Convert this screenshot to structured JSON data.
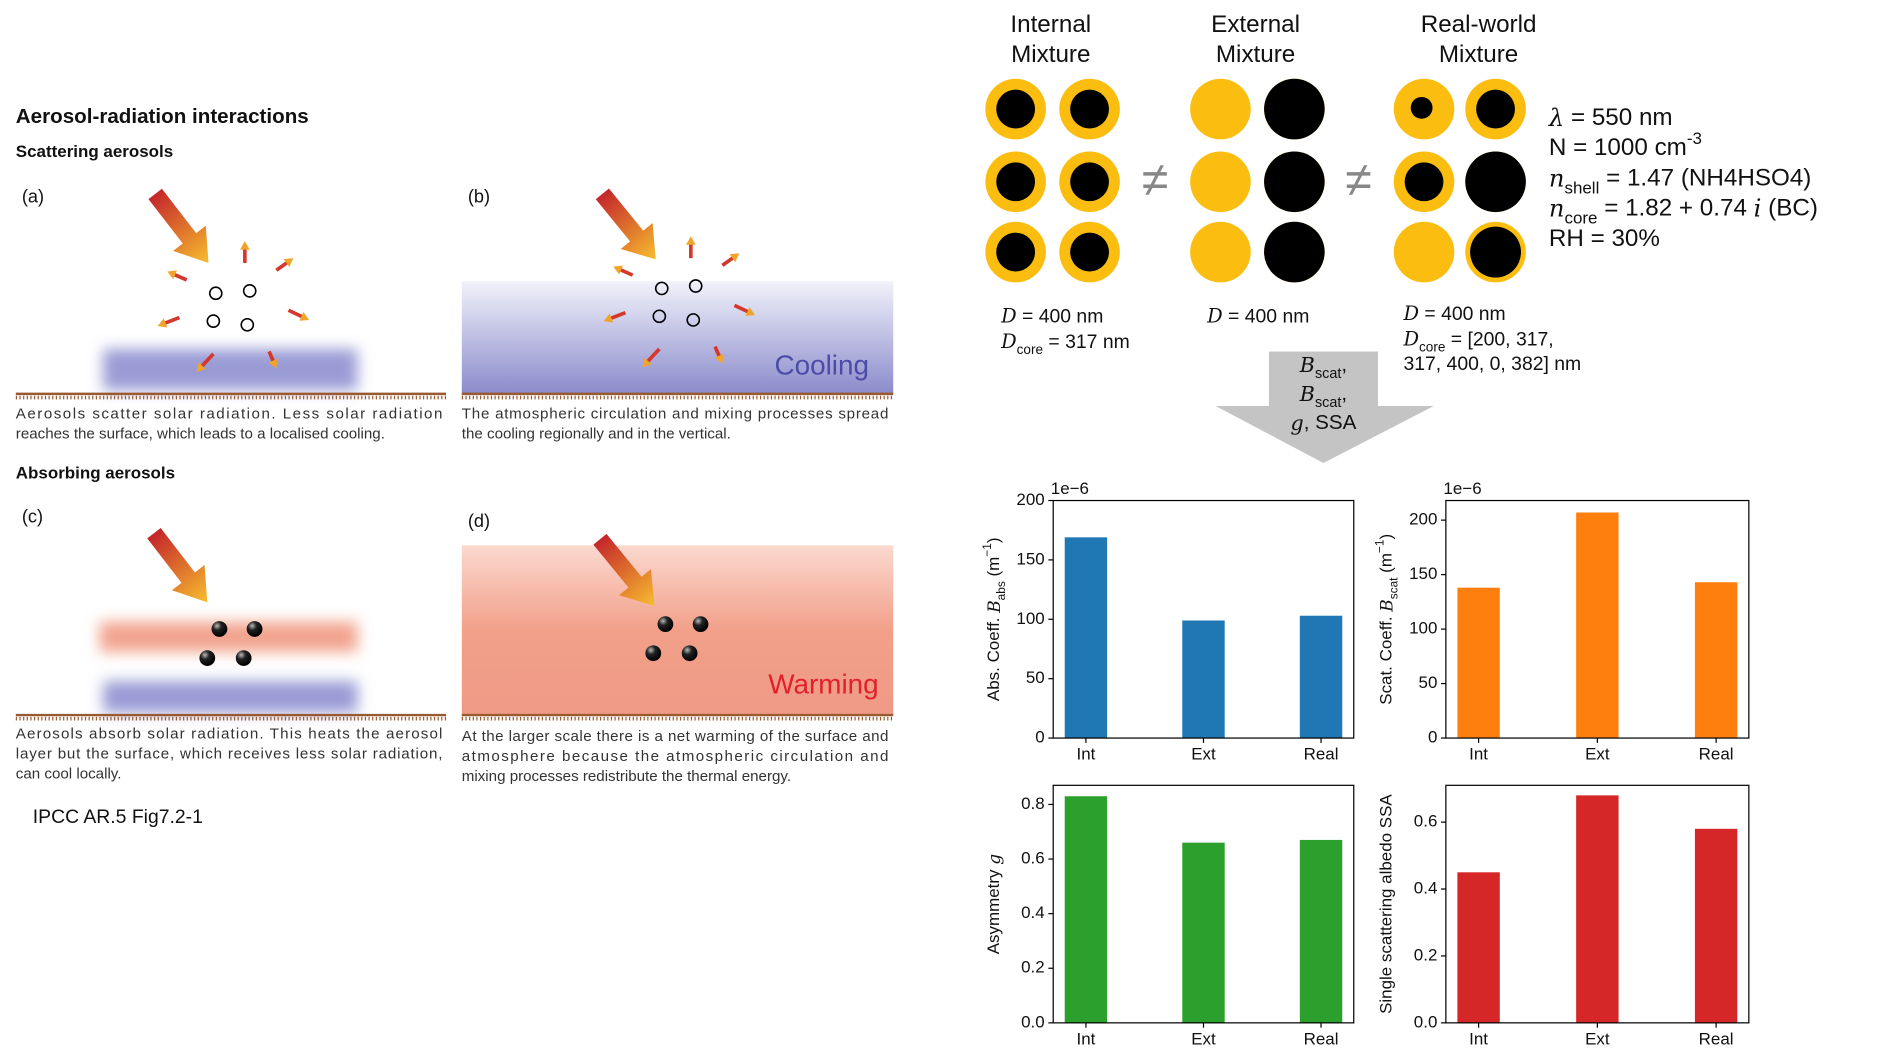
{
  "left_panel": {
    "title": "Aerosol-radiation interactions",
    "scattering_heading": "Scattering aerosols",
    "absorbing_heading": "Absorbing aerosols",
    "panels": [
      {
        "label": "(a)",
        "caption": [
          "Aerosols scatter solar radiation. Less solar radiation",
          "reaches the surface, which leads to a localised cooling."
        ]
      },
      {
        "label": "(b)",
        "caption": [
          "The atmospheric circulation and mixing processes spread",
          "the cooling regionally and in the vertical."
        ],
        "annotation": "Cooling"
      },
      {
        "label": "(c)",
        "caption": [
          "Aerosols absorb solar radiation. This heats the aerosol",
          "layer but the surface, which receives less solar radiation,",
          "can cool locally."
        ]
      },
      {
        "label": "(d)",
        "caption": [
          "At the larger scale there is a net warming of the surface and",
          "atmosphere because the atmospheric circulation and",
          "mixing processes redistribute the thermal energy."
        ],
        "annotation": "Warming"
      }
    ],
    "source": "IPCC AR.5 Fig7.2-1"
  },
  "mixture_panel": {
    "columns": [
      {
        "title": [
          "Internal",
          "Mixture"
        ],
        "d": [
          {
            "text": "D",
            "style": "italic"
          },
          {
            "text": " = 400 nm"
          }
        ],
        "dcore": [
          [
            {
              "text": "D",
              "style": "italic"
            },
            {
              "text": "core",
              "style": "sub"
            },
            {
              "text": " = 317 nm"
            }
          ]
        ]
      },
      {
        "title": [
          "External",
          "Mixture"
        ],
        "d": [
          {
            "text": "D",
            "style": "italic"
          },
          {
            "text": " = 400 nm"
          }
        ]
      },
      {
        "title": [
          "Real-world",
          "Mixture"
        ],
        "d": [
          {
            "text": "D",
            "style": "italic"
          },
          {
            "text": " = 400 nm"
          }
        ],
        "dcore": [
          [
            {
              "text": "D",
              "style": "italic"
            },
            {
              "text": "core",
              "style": "sub"
            },
            {
              "text": " = [200, 317,"
            }
          ],
          [
            {
              "text": "317, 400, 0, 382] nm"
            }
          ]
        ]
      }
    ],
    "not_equal": [
      "≠",
      "≠"
    ],
    "params": [
      [
        {
          "text": "λ",
          "style": "italic"
        },
        {
          "text": " = 550 nm"
        }
      ],
      [
        {
          "text": "N  =  1000 cm"
        },
        {
          "text": "-3",
          "style": "sup"
        }
      ],
      [
        {
          "text": "n",
          "style": "italic"
        },
        {
          "text": "shell",
          "style": "sub"
        },
        {
          "text": " = 1.47  (NH4HSO4)"
        }
      ],
      [
        {
          "text": "n",
          "style": "italic"
        },
        {
          "text": "core",
          "style": "sub"
        },
        {
          "text": " = 1.82 + 0.74 "
        },
        {
          "text": "i",
          "style": "italic"
        },
        {
          "text": "  (BC)"
        }
      ],
      [
        {
          "text": "RH = 30%"
        }
      ]
    ],
    "arrow_text": [
      [
        {
          "text": "B",
          "style": "italic"
        },
        {
          "text": "scat",
          "style": "sub"
        },
        {
          "text": ","
        }
      ],
      [
        {
          "text": "B",
          "style": "italic"
        },
        {
          "text": "scat",
          "style": "sub"
        },
        {
          "text": ","
        }
      ],
      [
        {
          "text": "g",
          "style": "italic"
        },
        {
          "text": ", SSA"
        }
      ]
    ]
  },
  "chart_data": [
    {
      "type": "bar",
      "categories": [
        "Int",
        "Ext",
        "Real"
      ],
      "values": [
        169,
        99,
        103
      ],
      "color": "#1f77b4",
      "ylim": [
        0,
        200
      ],
      "yticks": [
        0,
        50,
        100,
        150,
        200
      ],
      "offset_label": "1e−6",
      "ylabel": [
        {
          "text": "Abs. Coeff. "
        },
        {
          "text": "B",
          "style": "italic"
        },
        {
          "text": "abs",
          "style": "sub"
        },
        {
          "text": " (m"
        },
        {
          "text": "−1",
          "style": "sup"
        },
        {
          "text": ")"
        }
      ]
    },
    {
      "type": "bar",
      "categories": [
        "Int",
        "Ext",
        "Real"
      ],
      "values": [
        138,
        207,
        143
      ],
      "color": "#ff7f0e",
      "ylim": [
        0,
        218
      ],
      "yticks": [
        0,
        50,
        100,
        150,
        200
      ],
      "offset_label": "1e−6",
      "ylabel": [
        {
          "text": "Scat. Coeff. "
        },
        {
          "text": "B",
          "style": "italic"
        },
        {
          "text": "scat",
          "style": "sub"
        },
        {
          "text": " (m"
        },
        {
          "text": "−1",
          "style": "sup"
        },
        {
          "text": ")"
        }
      ]
    },
    {
      "type": "bar",
      "categories": [
        "Int",
        "Ext",
        "Real"
      ],
      "values": [
        0.83,
        0.66,
        0.67
      ],
      "color": "#2ca02c",
      "ylim": [
        0,
        0.87
      ],
      "yticks": [
        {
          "value": 0,
          "label": "0.0"
        },
        0.2,
        0.4,
        0.6,
        0.8
      ],
      "ylabel": [
        {
          "text": "Asymmetry "
        },
        {
          "text": "g",
          "style": "italic"
        }
      ]
    },
    {
      "type": "bar",
      "categories": [
        "Int",
        "Ext",
        "Real"
      ],
      "values": [
        0.45,
        0.68,
        0.58
      ],
      "color": "#d62728",
      "ylim": [
        0,
        0.71
      ],
      "yticks": [
        {
          "value": 0,
          "label": "0.0"
        },
        0.2,
        0.4,
        0.6
      ],
      "ylabel": [
        {
          "text": "Single scattering albedo SSA"
        }
      ]
    }
  ]
}
